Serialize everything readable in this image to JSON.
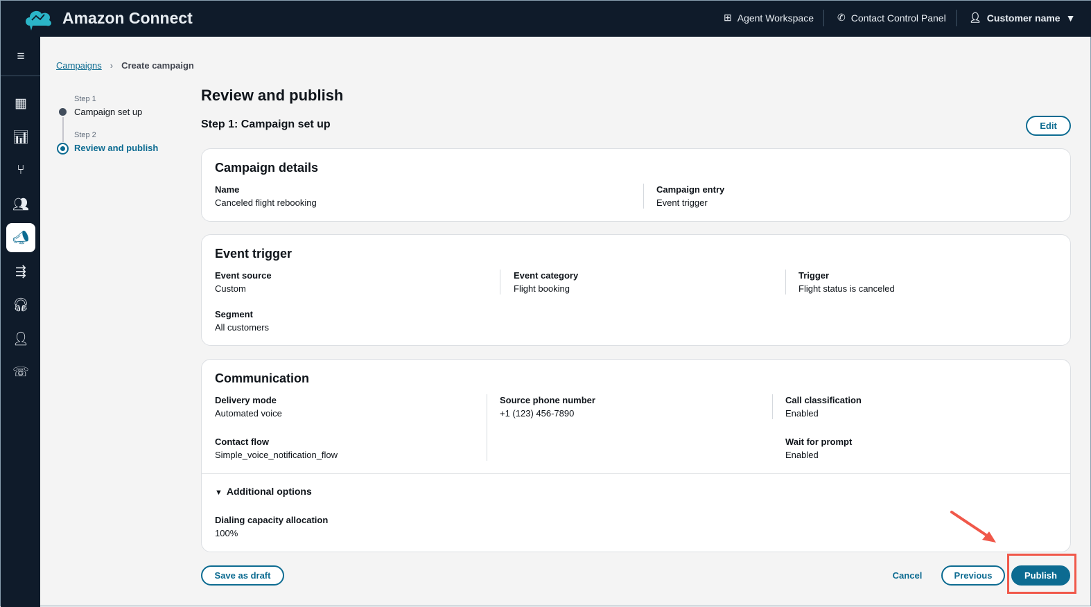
{
  "header": {
    "brand": "Amazon Connect",
    "nav": [
      {
        "label": "Agent Workspace",
        "icon": "layout-icon"
      },
      {
        "label": "Contact Control Panel",
        "icon": "phone-icon"
      },
      {
        "label": "Customer name",
        "icon": "user-icon"
      }
    ]
  },
  "sidebar": {
    "icons": [
      "menu-icon",
      "dashboard-icon",
      "chart-icon",
      "routing-icon",
      "users-icon",
      "campaign-icon",
      "queue-icon",
      "headset-icon",
      "profile-icon",
      "phone-chat-icon"
    ],
    "active": "campaign-icon"
  },
  "breadcrumb": {
    "parent": "Campaigns",
    "current": "Create campaign"
  },
  "steps": [
    {
      "label": "Step 1",
      "name": "Campaign set up"
    },
    {
      "label": "Step 2",
      "name": "Review and publish"
    }
  ],
  "page": {
    "title": "Review and publish",
    "section": "Step 1: Campaign set up",
    "edit": "Edit"
  },
  "campaign_details": {
    "title": "Campaign details",
    "fields": [
      {
        "k": "Name",
        "v": "Canceled flight rebooking"
      },
      {
        "k": "Campaign entry",
        "v": "Event trigger"
      }
    ]
  },
  "event_trigger": {
    "title": "Event trigger",
    "fields": [
      {
        "k": "Event source",
        "v": "Custom"
      },
      {
        "k": "Event category",
        "v": "Flight booking"
      },
      {
        "k": "Trigger",
        "v": "Flight status is canceled"
      },
      {
        "k": "Segment",
        "v": "All customers"
      }
    ]
  },
  "communication": {
    "title": "Communication",
    "fields": [
      {
        "k": "Delivery mode",
        "v": "Automated voice"
      },
      {
        "k": "Source phone number",
        "v": "+1 (123) 456-7890"
      },
      {
        "k": "Call classification",
        "v": "Enabled"
      },
      {
        "k": "Contact flow",
        "v": "Simple_voice_notification_flow"
      },
      {
        "k": "Wait for prompt",
        "v": "Enabled"
      }
    ],
    "additional": "Additional options",
    "capacity": {
      "k": "Dialing capacity allocation",
      "v": "100%"
    }
  },
  "footer": {
    "draft": "Save as draft",
    "cancel": "Cancel",
    "previous": "Previous",
    "publish": "Publish"
  },
  "colors": {
    "primary": "#0c6b91",
    "header": "#0f1b2a",
    "annotation": "#f0584a"
  }
}
